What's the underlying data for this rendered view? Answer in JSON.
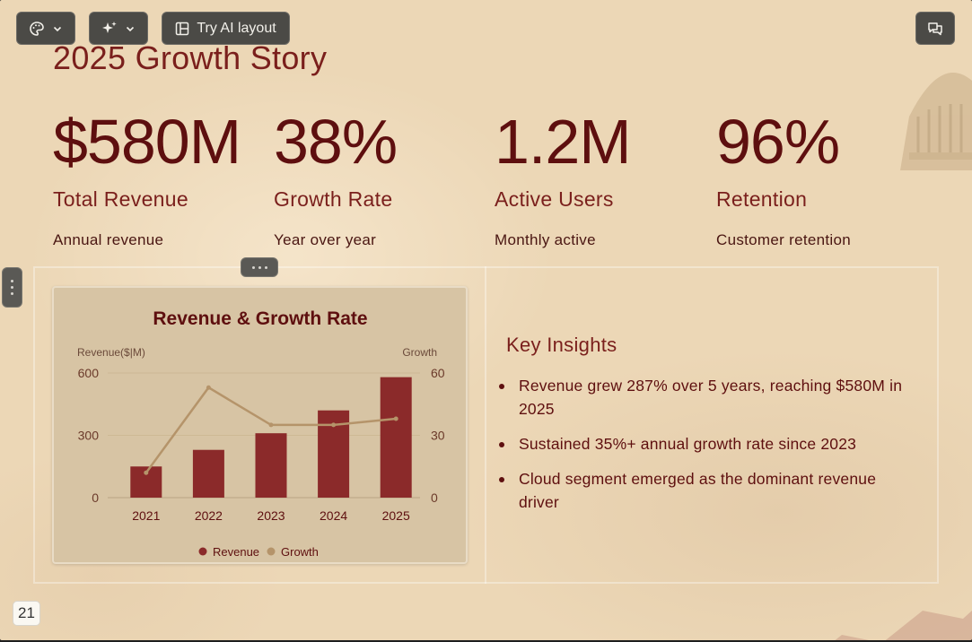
{
  "toolbar": {
    "theme_icon": "palette-icon",
    "ai_icon": "sparkles-icon",
    "ai_layout_label": "Try AI layout",
    "comments_icon": "comments-icon"
  },
  "slide": {
    "title": "2025 Growth Story",
    "stats": [
      {
        "value": "$580M",
        "label": "Total Revenue",
        "sub": "Annual revenue"
      },
      {
        "value": "38%",
        "label": "Growth Rate",
        "sub": "Year over year"
      },
      {
        "value": "1.2M",
        "label": "Active Users",
        "sub": "Monthly active"
      },
      {
        "value": "96%",
        "label": "Retention",
        "sub": "Customer retention"
      }
    ],
    "insights_title": "Key Insights",
    "insights": [
      "Revenue grew 287% over 5 years, reaching $580M in 2025",
      "Sustained 35%+ annual growth rate since 2023",
      "Cloud segment emerged as the dominant revenue driver"
    ],
    "page_number": "21"
  },
  "chart_data": {
    "type": "bar",
    "title": "Revenue & Growth Rate",
    "categories": [
      "2021",
      "2022",
      "2023",
      "2024",
      "2025"
    ],
    "ylabel_left": "Revenue($|M)",
    "ylabel_right": "Growth",
    "ylim_left": [
      0,
      600
    ],
    "ylim_right": [
      0,
      60
    ],
    "yticks_left": [
      "600",
      "300",
      "0"
    ],
    "yticks_right": [
      "60",
      "30",
      "0"
    ],
    "series": [
      {
        "name": "Revenue",
        "type": "bar",
        "axis": "left",
        "color": "#8b2a2a",
        "values": [
          150,
          230,
          310,
          420,
          580
        ]
      },
      {
        "name": "Growth",
        "type": "line",
        "axis": "right",
        "color": "#b5946a",
        "values": [
          12,
          53,
          35,
          35,
          38
        ]
      }
    ],
    "legend": "bottom",
    "grid": true
  }
}
